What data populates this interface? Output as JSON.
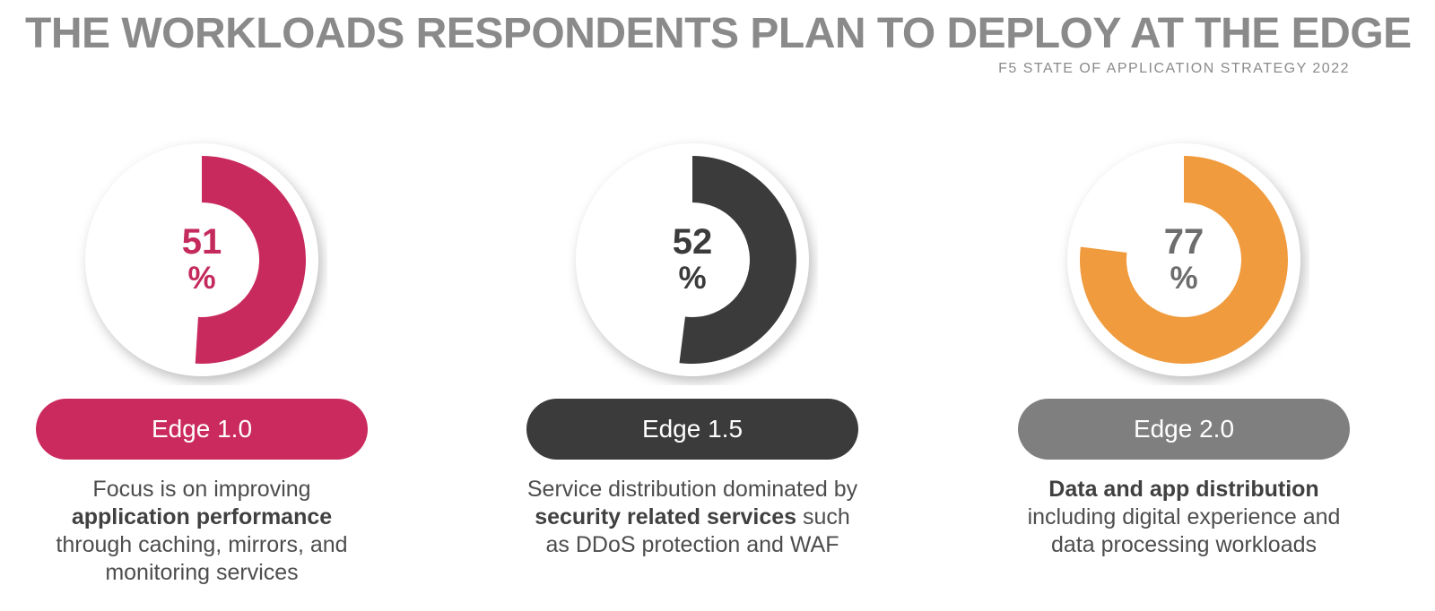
{
  "header": {
    "title": "THE WORKLOADS RESPONDENTS PLAN TO DEPLOY AT THE EDGE",
    "subtitle": "F5 STATE OF APPLICATION STRATEGY 2022"
  },
  "colors": {
    "pink": "#c92a5e",
    "dark": "#3b3b3b",
    "orange": "#f09b3e",
    "gray_pill": "#7f7f7f",
    "title_gray": "#8a8a8a",
    "number_gray": "#6d6d6d",
    "body_text": "#4d4d4d"
  },
  "chart_data": {
    "type": "pie",
    "variant": "three donut gauges, fill starts at 12 o'clock and sweeps clockwise",
    "title": "THE WORKLOADS RESPONDENTS PLAN TO DEPLOY AT THE EDGE",
    "subtitle": "F5 STATE OF APPLICATION STRATEGY 2022",
    "unit": "%",
    "series": [
      {
        "name": "Edge 1.0",
        "value": 51,
        "color": "#c92a5e",
        "description": "Focus is on improving application performance through caching, mirrors, and monitoring services"
      },
      {
        "name": "Edge 1.5",
        "value": 52,
        "color": "#3b3b3b",
        "description": "Service distribution dominated by security related services such as DDoS protection and WAF"
      },
      {
        "name": "Edge 2.0",
        "value": 77,
        "color": "#f09b3e",
        "description": "Data and app distribution including digital experience and data processing workloads"
      }
    ],
    "legend_position": "below each gauge as pill badge",
    "grid": false
  },
  "cards": [
    {
      "value": 51,
      "unit": "%",
      "badge": "Edge 1.0",
      "arc_color": "#c92a5e",
      "number_color": "#c42a5c",
      "badge_color": "#cb2a5e",
      "segments": [
        {
          "text": "Focus is on improving\n",
          "bold": false
        },
        {
          "text": "application performance",
          "bold": true
        },
        {
          "text": "\nthrough caching, mirrors, and\nmonitoring services",
          "bold": false
        }
      ]
    },
    {
      "value": 52,
      "unit": "%",
      "badge": "Edge 1.5",
      "arc_color": "#3b3b3b",
      "number_color": "#3b3b3b",
      "badge_color": "#3b3b3b",
      "segments": [
        {
          "text": "Service distribution dominated by\n",
          "bold": false
        },
        {
          "text": "security related services",
          "bold": true
        },
        {
          "text": " such\nas DDoS protection and WAF",
          "bold": false
        }
      ]
    },
    {
      "value": 77,
      "unit": "%",
      "badge": "Edge 2.0",
      "arc_color": "#f09b3e",
      "number_color": "#6d6d6d",
      "badge_color": "#7f7f7f",
      "segments": [
        {
          "text": "Data and app distribution",
          "bold": true
        },
        {
          "text": "\nincluding digital experience and\ndata processing workloads",
          "bold": false
        }
      ]
    }
  ]
}
